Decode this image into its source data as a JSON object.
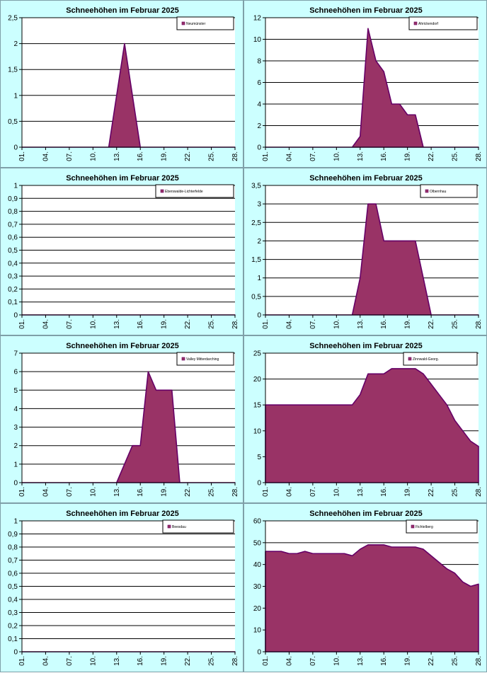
{
  "colors": {
    "fill": "#993366",
    "stroke": "#660066",
    "background": "#ccffff",
    "plot_bg": "#ffffff",
    "grid": "#000000"
  },
  "chart_data": [
    {
      "type": "area",
      "title": "Schneehöhen im Februar 2025",
      "series": [
        {
          "name": "Neumünster",
          "values": [
            0,
            0,
            0,
            0,
            0,
            0,
            0,
            0,
            0,
            0,
            0,
            0,
            1,
            2,
            1,
            0,
            0,
            0,
            0,
            0,
            0,
            0,
            0,
            0,
            0,
            0,
            0,
            0
          ]
        }
      ],
      "ylim": [
        0,
        2.5
      ],
      "yticks": [
        "0",
        "0,5",
        "1",
        "1,5",
        "2",
        "2,5"
      ],
      "xticks": [
        "01.",
        "04.",
        "07.",
        "10.",
        "13.",
        "16.",
        "19.",
        "22.",
        "25.",
        "28."
      ],
      "legend_position": "top-right",
      "grid": true
    },
    {
      "type": "area",
      "title": "Schneehöhen im Februar 2025",
      "series": [
        {
          "name": "Ahrickendorf",
          "values": [
            0,
            0,
            0,
            0,
            0,
            0,
            0,
            0,
            0,
            0,
            0,
            0,
            1,
            11,
            8,
            7,
            4,
            4,
            3,
            3,
            0,
            0,
            0,
            0,
            0,
            0,
            0,
            0
          ]
        }
      ],
      "ylim": [
        0,
        12
      ],
      "yticks": [
        "0",
        "2",
        "4",
        "6",
        "8",
        "10",
        "12"
      ],
      "xticks": [
        "01.",
        "04.",
        "07.",
        "10.",
        "13.",
        "16.",
        "19.",
        "22.",
        "25.",
        "28."
      ],
      "legend_position": "top-right",
      "grid": true
    },
    {
      "type": "area",
      "title": "Schneehöhen im Februar 2025",
      "series": [
        {
          "name": "Eberswalde-Lichterfelde",
          "values": [
            0,
            0,
            0,
            0,
            0,
            0,
            0,
            0,
            0,
            0,
            0,
            0,
            0,
            0,
            0,
            0,
            0,
            0,
            0,
            0,
            0,
            0,
            0,
            0,
            0,
            0,
            0,
            0
          ]
        }
      ],
      "ylim": [
        0,
        1
      ],
      "yticks": [
        "0",
        "0,1",
        "0,2",
        "0,3",
        "0,4",
        "0,5",
        "0,6",
        "0,7",
        "0,8",
        "0,9",
        "1"
      ],
      "xticks": [
        "01.",
        "04.",
        "07.",
        "10.",
        "13.",
        "16.",
        "19.",
        "22.",
        "25.",
        "28."
      ],
      "legend_position": "top-right",
      "grid": true
    },
    {
      "type": "area",
      "title": "Schneehöhen im Februar 2025",
      "series": [
        {
          "name": "Olbernhau",
          "values": [
            0,
            0,
            0,
            0,
            0,
            0,
            0,
            0,
            0,
            0,
            0,
            0,
            1,
            3,
            3,
            2,
            2,
            2,
            2,
            2,
            1,
            0,
            0,
            0,
            0,
            0,
            0,
            0
          ]
        }
      ],
      "ylim": [
        0,
        3.5
      ],
      "yticks": [
        "0",
        "0,5",
        "1",
        "1,5",
        "2",
        "2,5",
        "3",
        "3,5"
      ],
      "xticks": [
        "01.",
        "04.",
        "07.",
        "10.",
        "13.",
        "16.",
        "19.",
        "22.",
        "25.",
        "28."
      ],
      "legend_position": "top-right",
      "grid": true
    },
    {
      "type": "area",
      "title": "Schneehöhen im Februar 2025",
      "series": [
        {
          "name": "Valley Mitterdarching",
          "values": [
            0,
            0,
            0,
            0,
            0,
            0,
            0,
            0,
            0,
            0,
            0,
            0,
            0,
            1,
            2,
            2,
            6,
            5,
            5,
            5,
            0,
            0,
            0,
            0,
            0,
            0,
            0,
            0
          ]
        }
      ],
      "ylim": [
        0,
        7
      ],
      "yticks": [
        "0",
        "1",
        "2",
        "3",
        "4",
        "5",
        "6",
        "7"
      ],
      "xticks": [
        "01.",
        "04.",
        "07.",
        "10.",
        "13.",
        "16.",
        "19.",
        "22.",
        "25.",
        "28."
      ],
      "legend_position": "top-right",
      "grid": true
    },
    {
      "type": "area",
      "title": "Schneehöhen im Februar 2025",
      "series": [
        {
          "name": "Zinnwald-Georg.",
          "values": [
            15,
            15,
            15,
            15,
            15,
            15,
            15,
            15,
            15,
            15,
            15,
            15,
            17,
            21,
            21,
            21,
            22,
            22,
            22,
            22,
            21,
            19,
            17,
            15,
            12,
            10,
            8,
            7
          ]
        }
      ],
      "ylim": [
        0,
        25
      ],
      "yticks": [
        "0",
        "5",
        "10",
        "15",
        "20",
        "25"
      ],
      "xticks": [
        "01.",
        "04.",
        "07.",
        "10.",
        "13.",
        "16.",
        "19.",
        "22.",
        "25.",
        "28."
      ],
      "legend_position": "top-right",
      "grid": true
    },
    {
      "type": "area",
      "title": "Schneehöhen im Februar 2025",
      "series": [
        {
          "name": "Beesdau",
          "values": [
            0,
            0,
            0,
            0,
            0,
            0,
            0,
            0,
            0,
            0,
            0,
            0,
            0,
            0,
            0,
            0,
            0,
            0,
            0,
            0,
            0,
            0,
            0,
            0,
            0,
            0,
            0,
            0
          ]
        }
      ],
      "ylim": [
        0,
        1
      ],
      "yticks": [
        "0",
        "0,1",
        "0,2",
        "0,3",
        "0,4",
        "0,5",
        "0,6",
        "0,7",
        "0,8",
        "0,9",
        "1"
      ],
      "xticks": [
        "01.",
        "04.",
        "07.",
        "10.",
        "13.",
        "16.",
        "19.",
        "22.",
        "25.",
        "28."
      ],
      "legend_position": "top-right",
      "grid": true
    },
    {
      "type": "area",
      "title": "Schneehöhen im Februar 2025",
      "series": [
        {
          "name": "Fichtelberg",
          "values": [
            46,
            46,
            46,
            45,
            45,
            46,
            45,
            45,
            45,
            45,
            45,
            44,
            47,
            49,
            49,
            49,
            48,
            48,
            48,
            48,
            47,
            44,
            41,
            38,
            36,
            32,
            30,
            31
          ]
        }
      ],
      "ylim": [
        0,
        60
      ],
      "yticks": [
        "0",
        "10",
        "20",
        "30",
        "40",
        "50",
        "60"
      ],
      "xticks": [
        "01.",
        "04.",
        "07.",
        "10.",
        "13.",
        "16.",
        "19.",
        "22.",
        "25.",
        "28."
      ],
      "legend_position": "top-right",
      "grid": true
    }
  ]
}
